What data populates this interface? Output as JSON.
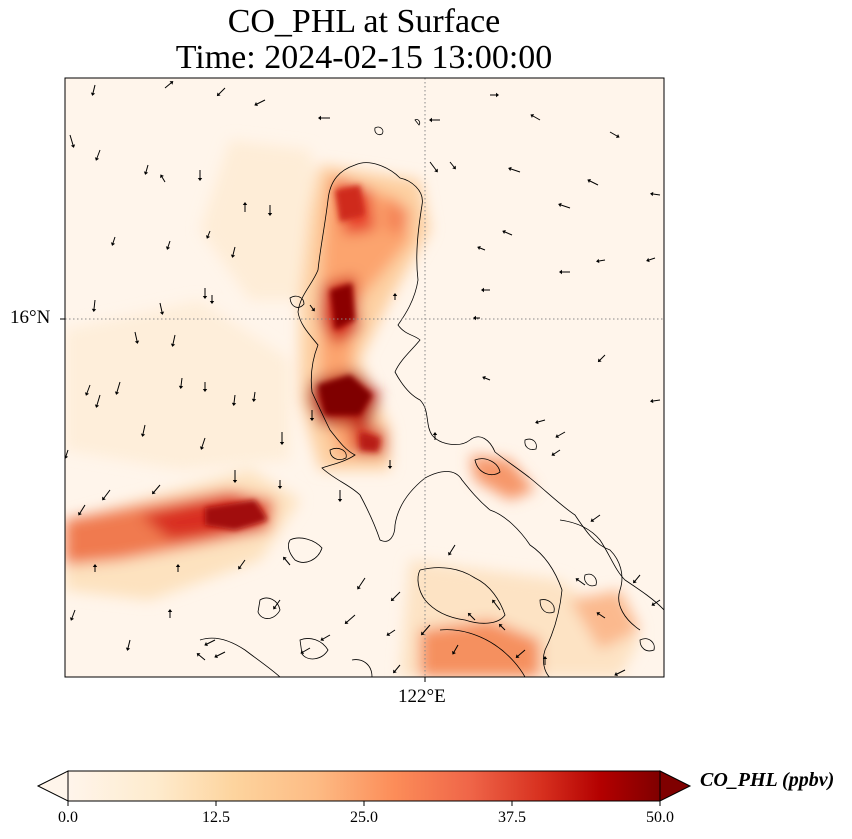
{
  "title": {
    "line1": "CO_PHL at Surface",
    "line2": "Time: 2024-02-15 13:00:00"
  },
  "map": {
    "lat_label": "16°N",
    "lon_label": "122°E",
    "background_color": "#fff5eb"
  },
  "colorbar": {
    "label": "CO_PHL (ppbv)",
    "min": 0.0,
    "max": 50.0,
    "ticks": [
      "0.0",
      "12.5",
      "25.0",
      "37.5",
      "50.0"
    ],
    "colors": [
      "#fff5eb",
      "#fdd49e",
      "#fdbb84",
      "#fc8d59",
      "#ef6548",
      "#d7301f",
      "#b30000",
      "#7f0000"
    ]
  }
}
